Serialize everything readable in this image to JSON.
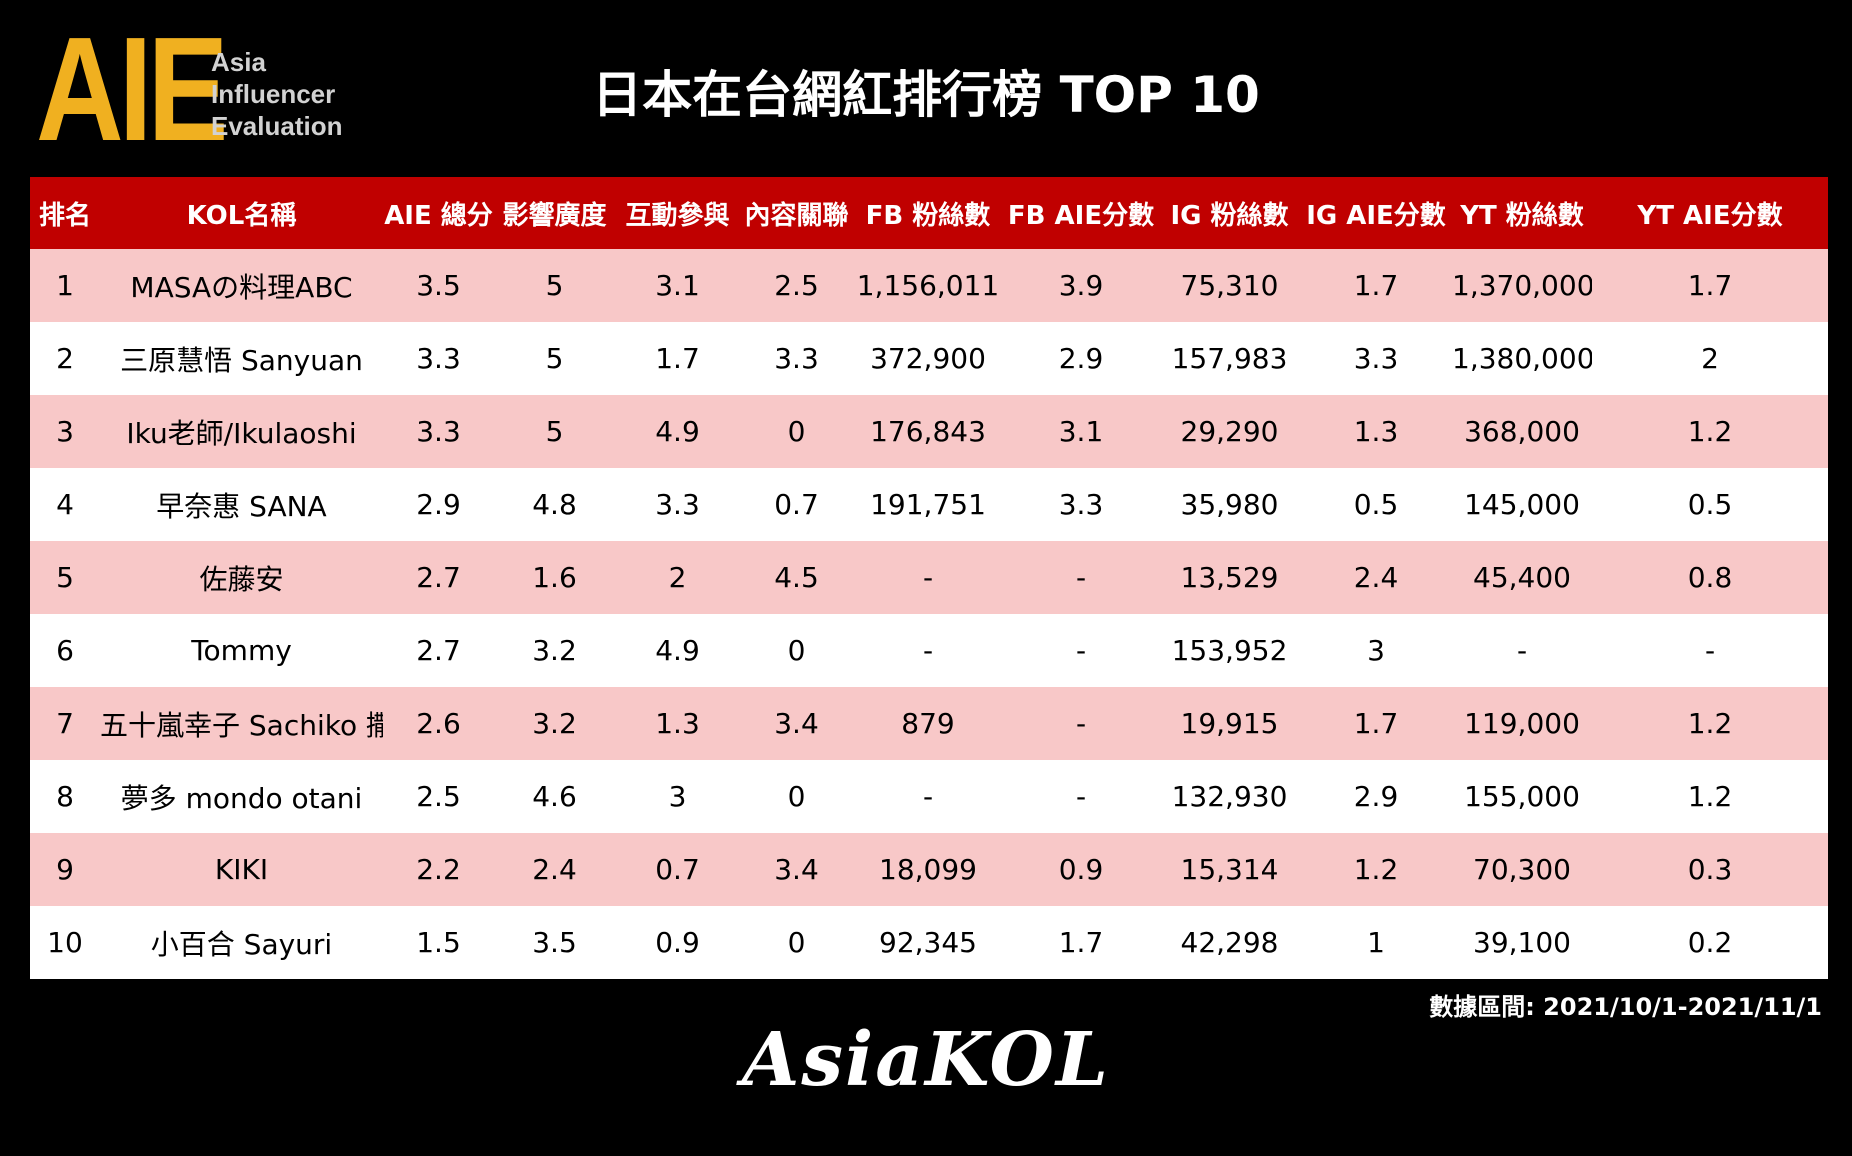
{
  "logo": {
    "mark": "AIE",
    "line1": "Asia",
    "line2": "Influencer",
    "line3": "Evaluation"
  },
  "title": "日本在台網紅排行榜 TOP 10",
  "table": {
    "headers": [
      "排名",
      "KOL名稱",
      "AIE 總分",
      "影響廣度",
      "互動參與",
      "內容關聯",
      "FB 粉絲數",
      "FB AIE分數",
      "IG 粉絲數",
      "IG AIE分數",
      "YT 粉絲數",
      "YT AIE分數"
    ],
    "rows": [
      [
        "1",
        "MASAの料理ABC",
        "3.5",
        "5",
        "3.1",
        "2.5",
        "1,156,011",
        "3.9",
        "75,310",
        "1.7",
        "1,370,000",
        "1.7"
      ],
      [
        "2",
        "三原慧悟 Sanyuan",
        "3.3",
        "5",
        "1.7",
        "3.3",
        "372,900",
        "2.9",
        "157,983",
        "3.3",
        "1,380,000",
        "2"
      ],
      [
        "3",
        "Iku老師/Ikulaoshi",
        "3.3",
        "5",
        "4.9",
        "0",
        "176,843",
        "3.1",
        "29,290",
        "1.3",
        "368,000",
        "1.2"
      ],
      [
        "4",
        "早奈惠 SANA",
        "2.9",
        "4.8",
        "3.3",
        "0.7",
        "191,751",
        "3.3",
        "35,980",
        "0.5",
        "145,000",
        "0.5"
      ],
      [
        "5",
        "佐藤安",
        "2.7",
        "1.6",
        "2",
        "4.5",
        "-",
        "-",
        "13,529",
        "2.4",
        "45,400",
        "0.8"
      ],
      [
        "6",
        "Tommy",
        "2.7",
        "3.2",
        "4.9",
        "0",
        "-",
        "-",
        "153,952",
        "3",
        "-",
        "-"
      ],
      [
        "7",
        "五十嵐幸子 Sachiko 撒醬",
        "2.6",
        "3.2",
        "1.3",
        "3.4",
        "879",
        "-",
        "19,915",
        "1.7",
        "119,000",
        "1.2"
      ],
      [
        "8",
        "夢多 mondo otani",
        "2.5",
        "4.6",
        "3",
        "0",
        "-",
        "-",
        "132,930",
        "2.9",
        "155,000",
        "1.2"
      ],
      [
        "9",
        "KIKI",
        "2.2",
        "2.4",
        "0.7",
        "3.4",
        "18,099",
        "0.9",
        "15,314",
        "1.2",
        "70,300",
        "0.3"
      ],
      [
        "10",
        "小百合 Sayuri",
        "1.5",
        "3.5",
        "0.9",
        "0",
        "92,345",
        "1.7",
        "42,298",
        "1",
        "39,100",
        "0.2"
      ]
    ]
  },
  "date_range": "數據區間: 2021/10/1-2021/11/1",
  "brand": "AsiaKOL"
}
